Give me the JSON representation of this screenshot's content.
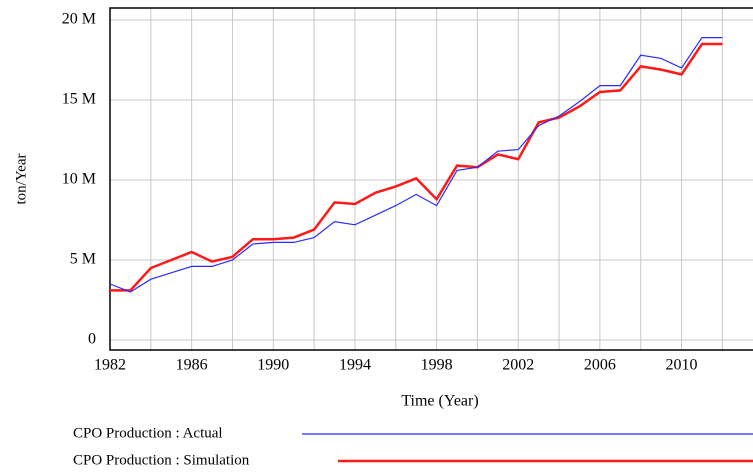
{
  "chart_data": {
    "type": "line",
    "x_label": "Time (Year)",
    "y_label": "ton/Year",
    "x": [
      1982,
      1983,
      1984,
      1985,
      1986,
      1987,
      1988,
      1989,
      1990,
      1991,
      1992,
      1993,
      1994,
      1995,
      1996,
      1997,
      1998,
      1999,
      2000,
      2001,
      2002,
      2003,
      2004,
      2005,
      2006,
      2007,
      2008,
      2009,
      2010,
      2011,
      2012
    ],
    "series": [
      {
        "name": "CPO Production : Actual",
        "color": "#2b2bff",
        "values": [
          3500000,
          3000000,
          3800000,
          4200000,
          4600000,
          4600000,
          5000000,
          6000000,
          6100000,
          6100000,
          6400000,
          7400000,
          7200000,
          7800000,
          8400000,
          9100000,
          8400000,
          10600000,
          10800000,
          11800000,
          11900000,
          13400000,
          14000000,
          14900000,
          15900000,
          15900000,
          17800000,
          17600000,
          17000000,
          18900000,
          18900000
        ]
      },
      {
        "name": "CPO Production : Simulation",
        "color": "#ff1a1a",
        "values": [
          3100000,
          3100000,
          4500000,
          5000000,
          5500000,
          4900000,
          5200000,
          6300000,
          6300000,
          6400000,
          6900000,
          8600000,
          8500000,
          9200000,
          9600000,
          10100000,
          8800000,
          10900000,
          10800000,
          11600000,
          11300000,
          13600000,
          13900000,
          14600000,
          15500000,
          15600000,
          17100000,
          16900000,
          16600000,
          18500000,
          18500000
        ]
      }
    ],
    "xlim": [
      1982,
      2013.5
    ],
    "xticks": [
      1982,
      1986,
      1990,
      1994,
      1998,
      2002,
      2006,
      2010
    ],
    "xminor": [
      1984,
      1988,
      1992,
      1996,
      2000,
      2004,
      2008,
      2012
    ],
    "ylim": [
      -625000,
      20750000
    ],
    "yticks": [
      0,
      {
        "value": 5000000,
        "label": "5 M"
      },
      {
        "value": 10000000,
        "label": "10 M"
      },
      {
        "value": 15000000,
        "label": "15 M"
      },
      {
        "value": 20000000,
        "label": "20 M"
      }
    ],
    "grid": true
  }
}
